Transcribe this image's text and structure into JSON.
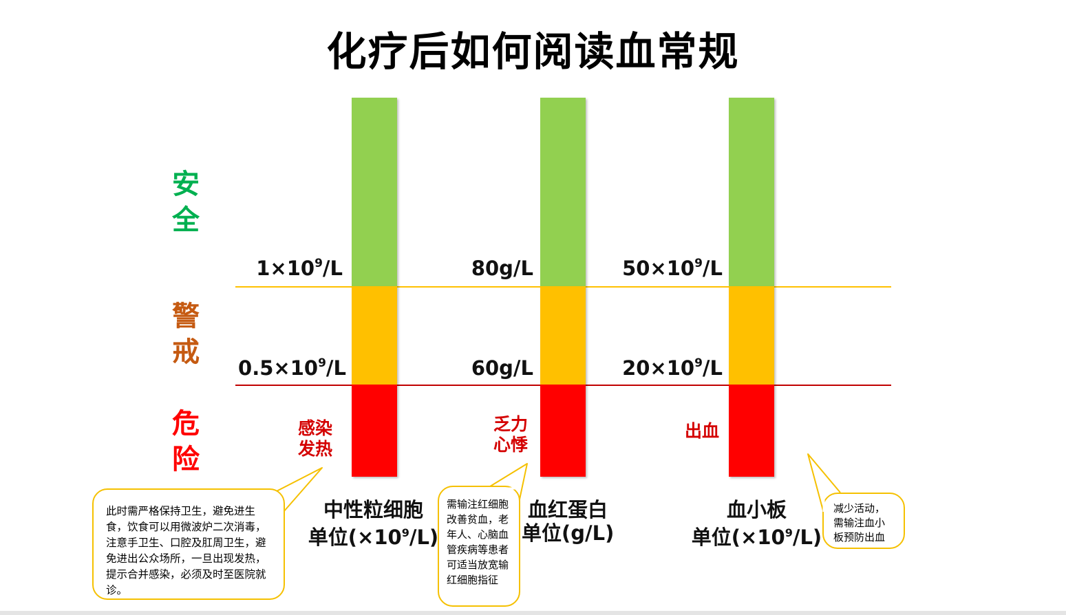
{
  "title": "化疗后如何阅读血常规",
  "zones": {
    "safe": {
      "label": "安全",
      "color": "#00b050"
    },
    "warning": {
      "label": "警戒",
      "color": "#c55a11"
    },
    "danger": {
      "label": "危险",
      "color": "#ff0000"
    }
  },
  "colors": {
    "green": "#92d050",
    "amber": "#ffc000",
    "red": "#ff0000",
    "upper_line": "#ffc000",
    "lower_line": "#c00000"
  },
  "columns": [
    {
      "id": "neutrophil",
      "upper_threshold": "1×10",
      "upper_threshold_exp": "9",
      "upper_threshold_unit": "/L",
      "lower_threshold": "0.5×10",
      "lower_threshold_exp": "9",
      "lower_threshold_unit": "/L",
      "symptom_line1": "感染",
      "symptom_line2": "发热",
      "name": "中性粒细胞",
      "unit_prefix": "单位(×10",
      "unit_exp": "9",
      "unit_suffix": "/L)",
      "note": "此时需严格保持卫生，避免进生食，饮食可以用微波炉二次消毒，注意手卫生、口腔及肛周卫生，避免进出公众场所，一旦出现发热，提示合并感染，必须及时至医院就诊。"
    },
    {
      "id": "hemoglobin",
      "upper_threshold": "80g/L",
      "lower_threshold": "60g/L",
      "symptom_line1": "乏力",
      "symptom_line2": "心悸",
      "name": "血红蛋白",
      "unit": "单位(g/L)",
      "note": "需输注红细胞改善贫血，老年人、心脑血管疾病等患者可适当放宽输红细胞指征"
    },
    {
      "id": "platelet",
      "upper_threshold": "50×10",
      "upper_threshold_exp": "9",
      "upper_threshold_unit": "/L",
      "lower_threshold": "20×10",
      "lower_threshold_exp": "9",
      "lower_threshold_unit": "/L",
      "symptom_line1": "出血",
      "name": "血小板",
      "unit_prefix": "单位(×10",
      "unit_exp": "9",
      "unit_suffix": "/L)",
      "note": "减少活动，需输注血小板预防出血"
    }
  ]
}
